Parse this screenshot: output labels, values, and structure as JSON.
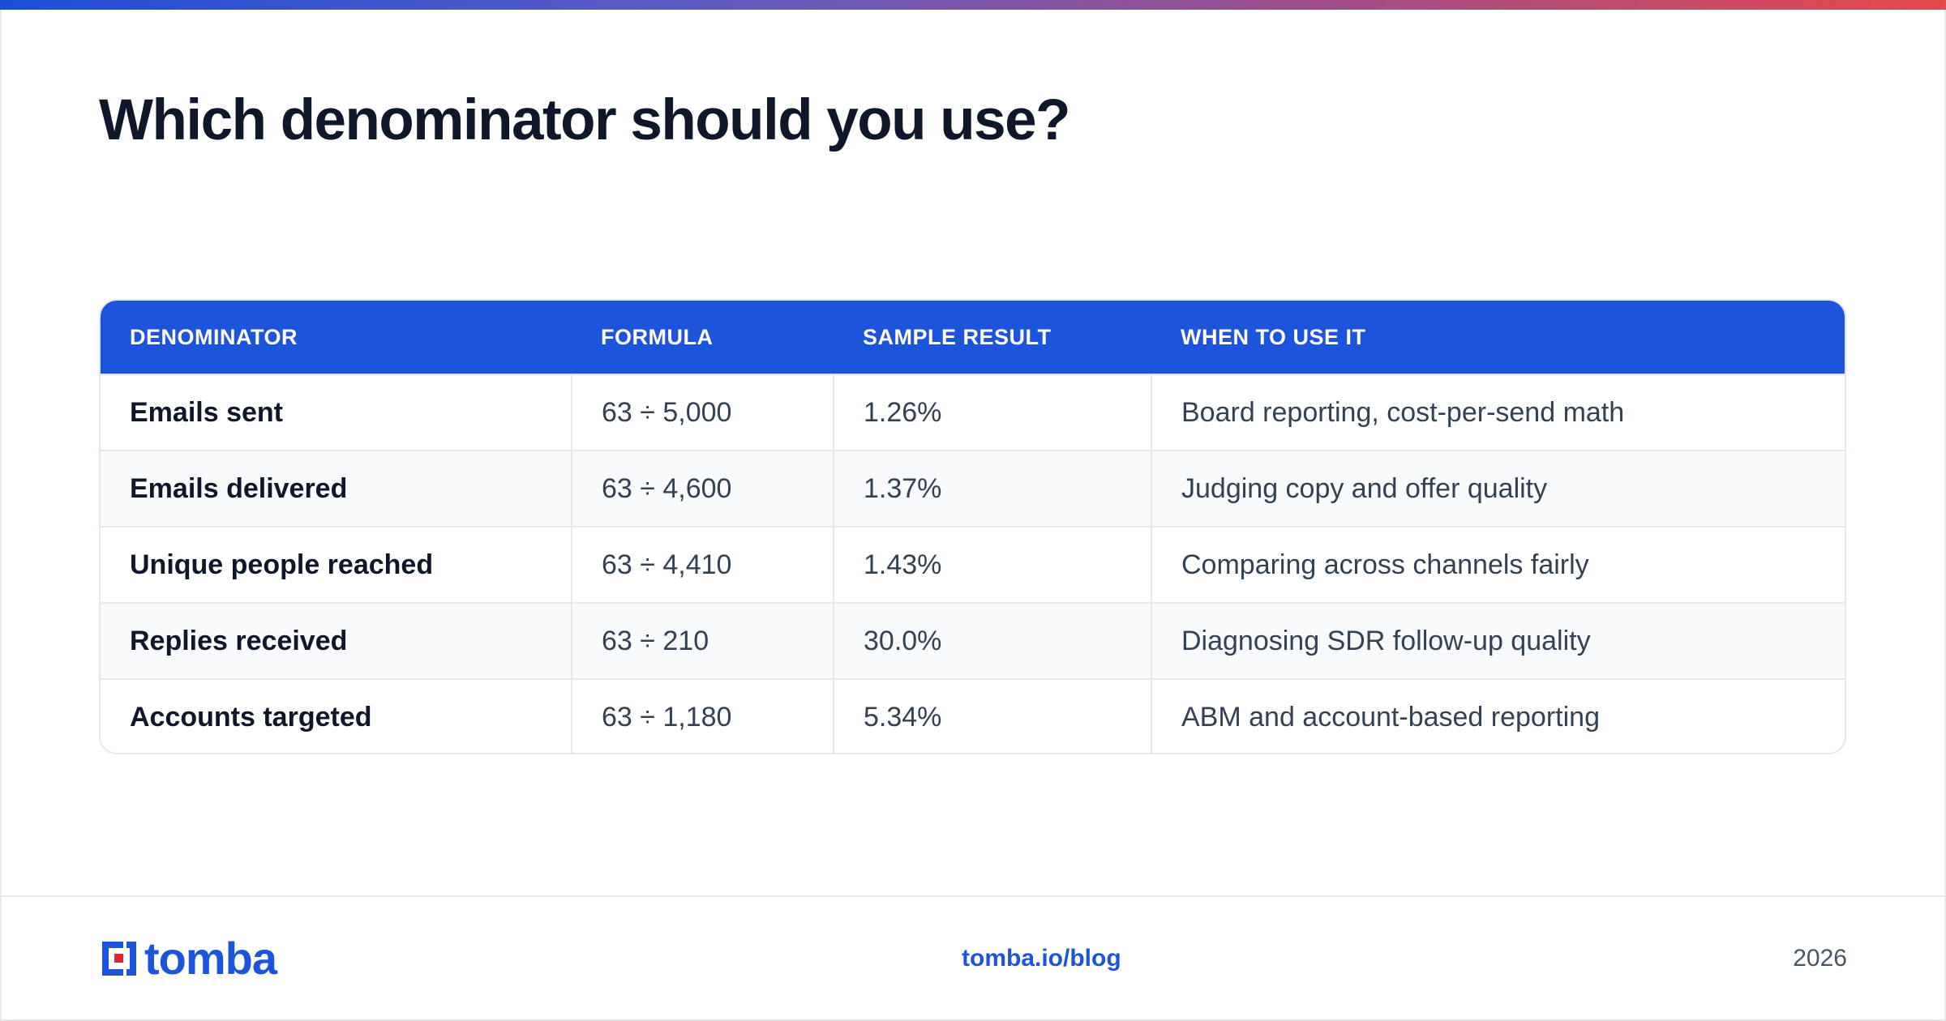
{
  "page": {
    "title": "Which denominator should you use?"
  },
  "colors": {
    "accent": "#1d54dc",
    "gradient_start": "#1d4ed8",
    "gradient_end": "#e5484d",
    "logo_red": "#e5242b"
  },
  "table": {
    "columns": [
      "DENOMINATOR",
      "FORMULA",
      "SAMPLE RESULT",
      "WHEN TO USE IT"
    ],
    "rows": [
      {
        "denominator": "Emails sent",
        "formula": "63 ÷ 5,000",
        "result": "1.26%",
        "use": "Board reporting, cost-per-send math"
      },
      {
        "denominator": "Emails delivered",
        "formula": "63 ÷ 4,600",
        "result": "1.37%",
        "use": "Judging copy and offer quality"
      },
      {
        "denominator": "Unique people reached",
        "formula": "63 ÷ 4,410",
        "result": "1.43%",
        "use": "Comparing across channels fairly"
      },
      {
        "denominator": "Replies received",
        "formula": "63 ÷ 210",
        "result": "30.0%",
        "use": "Diagnosing SDR follow-up quality"
      },
      {
        "denominator": "Accounts targeted",
        "formula": "63 ÷ 1,180",
        "result": "5.34%",
        "use": "ABM and account-based reporting"
      }
    ]
  },
  "footer": {
    "logo_text": "tomba",
    "logo_icon": "tomba-logo-icon",
    "link": "tomba.io/blog",
    "year": "2026"
  }
}
